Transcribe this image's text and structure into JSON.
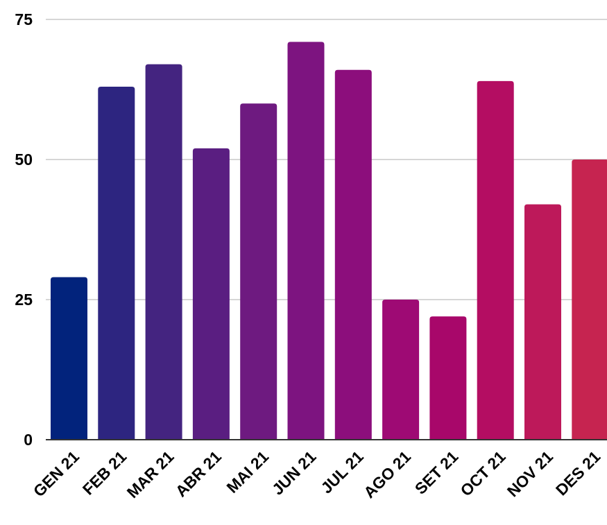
{
  "chart_data": {
    "type": "bar",
    "categories": [
      "GEN 21",
      "FEB 21",
      "MAR 21",
      "ABR 21",
      "MAI 21",
      "JUN 21",
      "JUL 21",
      "AGO 21",
      "SET 21",
      "OCT 21",
      "NOV 21",
      "DES 21"
    ],
    "values": [
      29,
      63,
      67,
      52,
      60,
      71,
      66,
      25,
      22,
      64,
      42,
      50
    ],
    "colors": [
      "#02237c",
      "#2d2580",
      "#442480",
      "#5a1e81",
      "#6e1a80",
      "#7d1480",
      "#8c0e7c",
      "#9e0a74",
      "#a8076a",
      "#b40d62",
      "#bd195a",
      "#c62450"
    ],
    "ylim": [
      0,
      75
    ],
    "yticks": [
      0,
      25,
      50,
      75
    ],
    "ytick_labels": [
      "0",
      "25",
      "50",
      "75"
    ],
    "grid": true,
    "title": "",
    "xlabel": "",
    "ylabel": ""
  }
}
